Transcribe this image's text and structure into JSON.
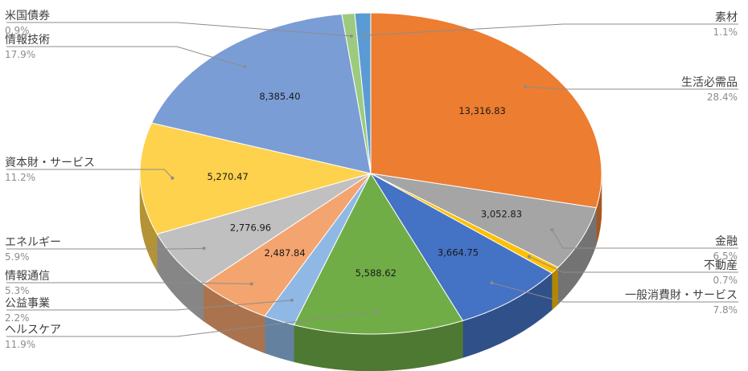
{
  "chart_data": {
    "type": "pie",
    "style": "3d",
    "title": "",
    "slices": [
      {
        "name": "素材",
        "percent_label": "1.1%",
        "value": 520,
        "value_label": "",
        "color": "#5b9bd5",
        "side": "right"
      },
      {
        "name": "生活必需品",
        "percent_label": "28.4%",
        "value": 13316.83,
        "value_label": "13,316.83",
        "color": "#ed7d31",
        "side": "right"
      },
      {
        "name": "金融",
        "percent_label": "6.5%",
        "value": 3052.83,
        "value_label": "3,052.83",
        "color": "#a5a5a5",
        "side": "right"
      },
      {
        "name": "不動産",
        "percent_label": "0.7%",
        "value": 330,
        "value_label": "",
        "color": "#ffc000",
        "side": "right"
      },
      {
        "name": "一般消費財・サービス",
        "percent_label": "7.8%",
        "value": 3664.75,
        "value_label": "3,664.75",
        "color": "#4472c4",
        "side": "right"
      },
      {
        "name": "ヘルスケア",
        "percent_label": "11.9%",
        "value": 5588.62,
        "value_label": "5,588.62",
        "color": "#70ad47",
        "side": "left"
      },
      {
        "name": "公益事業",
        "percent_label": "2.2%",
        "value": 1030,
        "value_label": "",
        "color": "#8fb8e4",
        "side": "left"
      },
      {
        "name": "情報通信",
        "percent_label": "5.3%",
        "value": 2487.84,
        "value_label": "2,487.84",
        "color": "#f4a46e",
        "side": "left"
      },
      {
        "name": "エネルギー",
        "percent_label": "5.9%",
        "value": 2776.96,
        "value_label": "2,776.96",
        "color": "#c0c0c0",
        "side": "left"
      },
      {
        "name": "資本財・サービス",
        "percent_label": "11.2%",
        "value": 5270.47,
        "value_label": "5,270.47",
        "color": "#ffd24d",
        "side": "left"
      },
      {
        "name": "情報技術",
        "percent_label": "17.9%",
        "value": 8385.4,
        "value_label": "8,385.40",
        "color": "#7b9dd6",
        "side": "left"
      },
      {
        "name": "米国債券",
        "percent_label": "0.9%",
        "value": 420,
        "value_label": "",
        "color": "#9ccb7f",
        "side": "left"
      }
    ],
    "legend": "none",
    "labels": "outside with leader lines"
  }
}
